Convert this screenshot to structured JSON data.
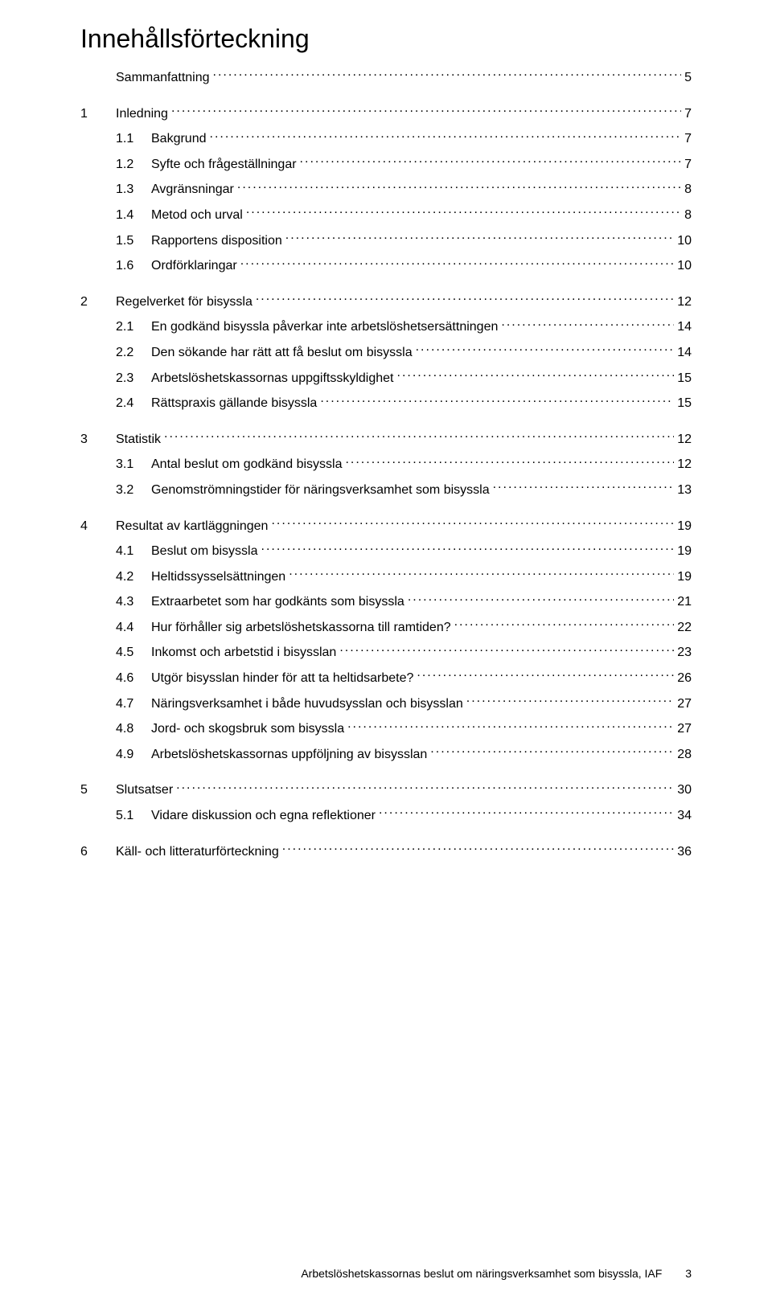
{
  "title": "Innehållsförteckning",
  "toc": [
    {
      "type": "top",
      "num": "",
      "label": "Sammanfattning",
      "page": "5"
    },
    {
      "type": "top",
      "num": "1",
      "label": "Inledning",
      "page": "7"
    },
    {
      "type": "sub",
      "num": "1.1",
      "label": "Bakgrund",
      "page": "7"
    },
    {
      "type": "sub",
      "num": "1.2",
      "label": "Syfte och frågeställningar",
      "page": "7"
    },
    {
      "type": "sub",
      "num": "1.3",
      "label": "Avgränsningar",
      "page": "8"
    },
    {
      "type": "sub",
      "num": "1.4",
      "label": "Metod och urval",
      "page": "8"
    },
    {
      "type": "sub",
      "num": "1.5",
      "label": "Rapportens disposition",
      "page": "10"
    },
    {
      "type": "sub",
      "num": "1.6",
      "label": "Ordförklaringar",
      "page": "10"
    },
    {
      "type": "top",
      "num": "2",
      "label": "Regelverket för bisyssla",
      "page": "12"
    },
    {
      "type": "sub",
      "num": "2.1",
      "label": "En godkänd bisyssla påverkar inte arbetslöshetsersättningen",
      "page": "14"
    },
    {
      "type": "sub",
      "num": "2.2",
      "label": "Den sökande har rätt att få beslut om bisyssla",
      "page": "14"
    },
    {
      "type": "sub",
      "num": "2.3",
      "label": "Arbetslöshetskassornas uppgiftsskyldighet",
      "page": "15"
    },
    {
      "type": "sub",
      "num": "2.4",
      "label": "Rättspraxis gällande bisyssla",
      "page": "15"
    },
    {
      "type": "top",
      "num": "3",
      "label": "Statistik",
      "page": "12"
    },
    {
      "type": "sub",
      "num": "3.1",
      "label": "Antal beslut om godkänd bisyssla",
      "page": "12"
    },
    {
      "type": "sub",
      "num": "3.2",
      "label": "Genomströmningstider för näringsverksamhet som bisyssla",
      "page": "13"
    },
    {
      "type": "top",
      "num": "4",
      "label": "Resultat av kartläggningen",
      "page": "19"
    },
    {
      "type": "sub",
      "num": "4.1",
      "label": "Beslut om bisyssla",
      "page": "19"
    },
    {
      "type": "sub",
      "num": "4.2",
      "label": "Heltidssysselsättningen",
      "page": "19"
    },
    {
      "type": "sub",
      "num": "4.3",
      "label": "Extraarbetet som har godkänts som bisyssla",
      "page": "21"
    },
    {
      "type": "sub",
      "num": "4.4",
      "label": "Hur förhåller sig arbetslöshetskassorna till ramtiden?",
      "page": "22"
    },
    {
      "type": "sub",
      "num": "4.5",
      "label": "Inkomst och arbetstid i bisysslan",
      "page": "23"
    },
    {
      "type": "sub",
      "num": "4.6",
      "label": "Utgör bisysslan hinder för att ta heltidsarbete?",
      "page": "26"
    },
    {
      "type": "sub",
      "num": "4.7",
      "label": "Näringsverksamhet i både huvudsysslan och bisysslan",
      "page": "27"
    },
    {
      "type": "sub",
      "num": "4.8",
      "label": "Jord- och skogsbruk som bisyssla",
      "page": "27"
    },
    {
      "type": "sub",
      "num": "4.9",
      "label": "Arbetslöshetskassornas uppföljning av bisysslan",
      "page": "28"
    },
    {
      "type": "top",
      "num": "5",
      "label": "Slutsatser",
      "page": "30"
    },
    {
      "type": "sub",
      "num": "5.1",
      "label": "Vidare diskussion och egna reflektioner",
      "page": "34"
    },
    {
      "type": "top",
      "num": "6",
      "label": "Käll- och litteraturförteckning",
      "page": "36"
    }
  ],
  "footer": {
    "text": "Arbetslöshetskassornas beslut om näringsverksamhet som bisyssla, IAF",
    "page": "3"
  }
}
